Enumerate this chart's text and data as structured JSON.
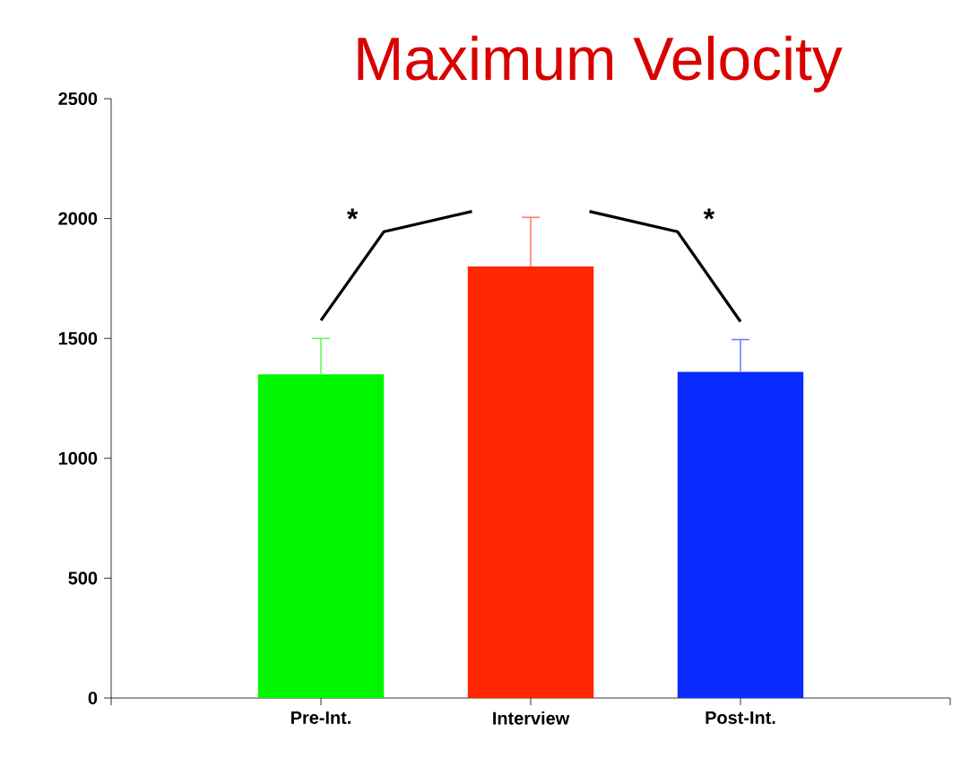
{
  "chart_data": {
    "type": "bar",
    "title": "Maximum Velocity",
    "categories": [
      "Pre-Int.",
      "Interview",
      "Post-Int."
    ],
    "values": [
      1350,
      1800,
      1360
    ],
    "colors": [
      "#00f700",
      "#ff2600",
      "#0a2bff"
    ],
    "errors": [
      [
        1350,
        1500
      ],
      [
        1800,
        2005
      ],
      [
        1360,
        1495
      ]
    ],
    "ylim": [
      0,
      2500
    ],
    "yticks": [
      0,
      500,
      1000,
      1500,
      2000,
      2500
    ],
    "annotations": [
      "*",
      "*"
    ]
  }
}
